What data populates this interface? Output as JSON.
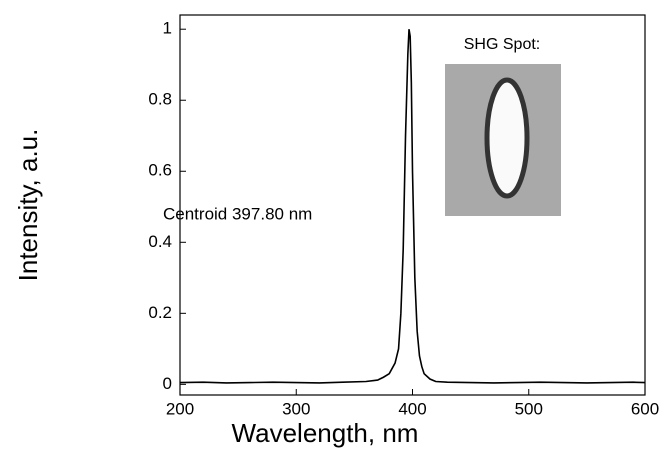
{
  "chart_data": {
    "type": "line",
    "x_label": "Wavelength,  nm",
    "y_label": "Intensity,  a.u.",
    "annotations": [
      "Centroid 397.80 nm",
      "SHG Spot:"
    ],
    "x": [
      200,
      220,
      240,
      260,
      280,
      300,
      320,
      340,
      360,
      370,
      375,
      380,
      385,
      388,
      390,
      392,
      394,
      396,
      397,
      398,
      399,
      400,
      402,
      404,
      406,
      408,
      410,
      415,
      420,
      430,
      450,
      470,
      490,
      510,
      530,
      550,
      570,
      590,
      600
    ],
    "series": [
      {
        "color": "#000000",
        "values": [
          0.005,
          0.006,
          0.004,
          0.005,
          0.006,
          0.005,
          0.004,
          0.006,
          0.008,
          0.012,
          0.02,
          0.03,
          0.06,
          0.1,
          0.2,
          0.38,
          0.7,
          0.93,
          1,
          0.98,
          0.85,
          0.6,
          0.3,
          0.15,
          0.08,
          0.05,
          0.03,
          0.015,
          0.008,
          0.006,
          0.005,
          0.004,
          0.005,
          0.006,
          0.005,
          0.004,
          0.005,
          0.006,
          0.005
        ]
      }
    ],
    "xlim": [
      200,
      600
    ],
    "xticks": [
      200,
      300,
      400,
      500,
      600
    ],
    "ylim": [
      -0.03,
      1.04
    ],
    "yticks": [
      0,
      0.2,
      0.4,
      0.6,
      0.8,
      1
    ]
  }
}
